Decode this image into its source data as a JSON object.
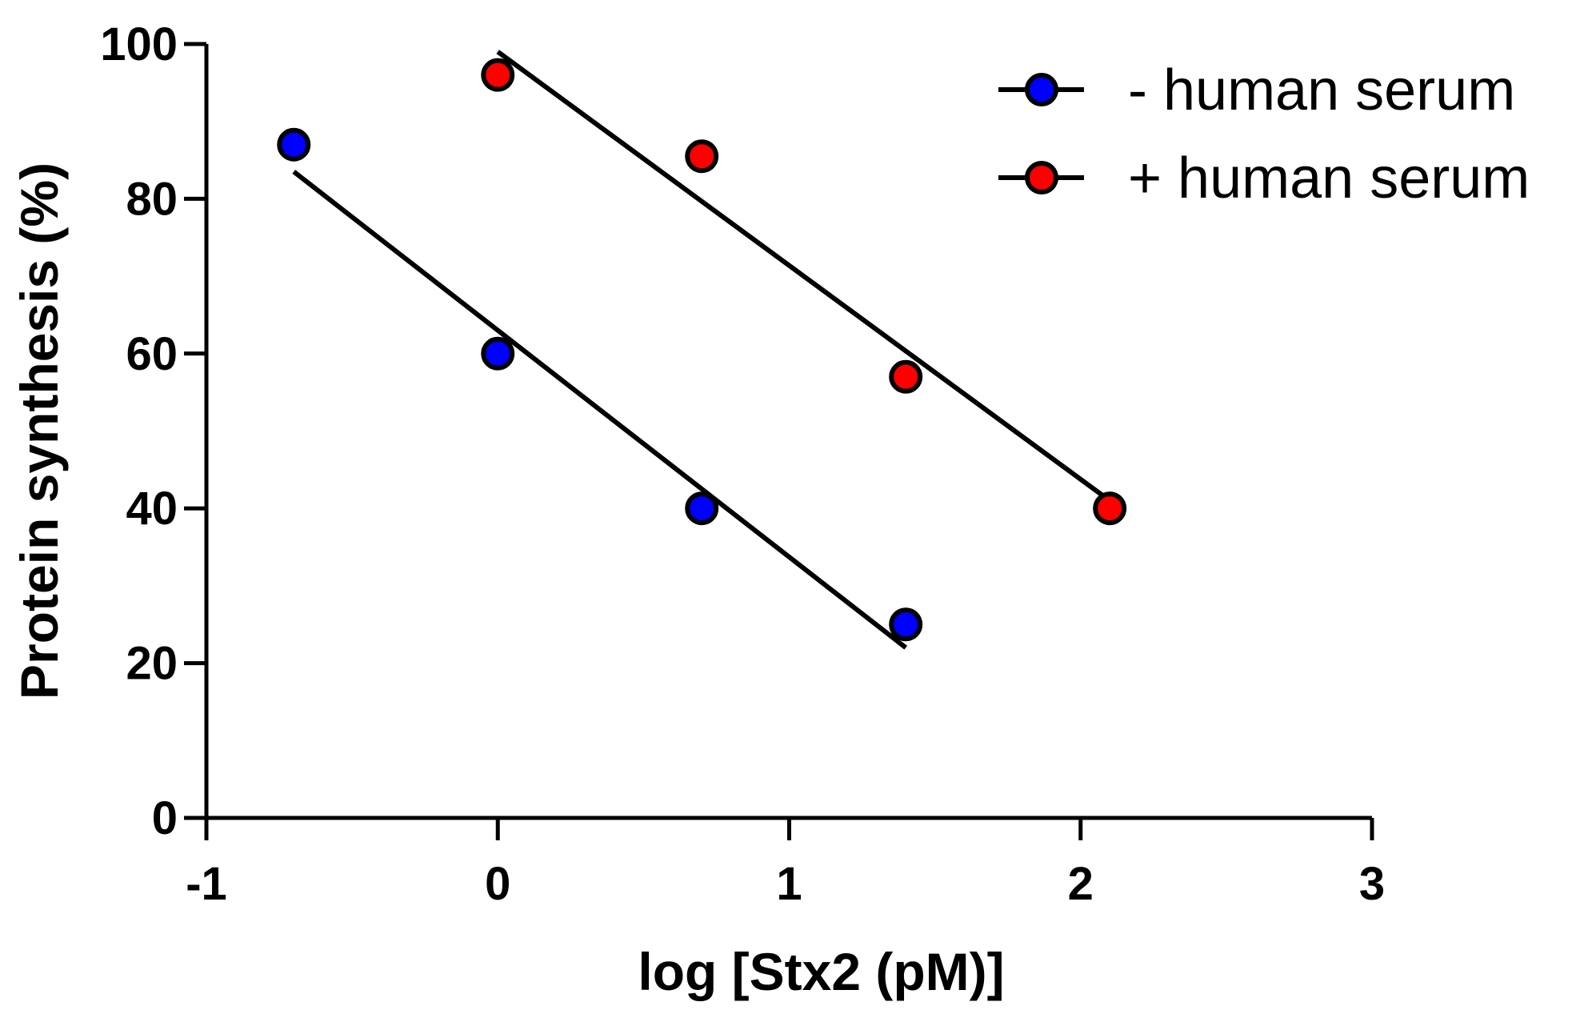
{
  "chart_data": {
    "type": "scatter",
    "xlabel": "log [Stx2 (pM)]",
    "ylabel": "Protein synthesis (%)",
    "xlim": [
      -1,
      3
    ],
    "ylim": [
      0,
      100
    ],
    "xticks": [
      "-1",
      "0",
      "1",
      "2",
      "3"
    ],
    "yticks": [
      "0",
      "20",
      "40",
      "60",
      "80",
      "100"
    ],
    "legend_position": "top-right",
    "grid": false,
    "series": [
      {
        "name": "- human serum",
        "color": "#0000ff",
        "points": [
          {
            "x": -0.7,
            "y": 87
          },
          {
            "x": 0,
            "y": 60
          },
          {
            "x": 0.7,
            "y": 40
          },
          {
            "x": 1.4,
            "y": 25
          }
        ],
        "fit": {
          "x1": -0.7,
          "y1": 83.5,
          "x2": 1.4,
          "y2": 22
        }
      },
      {
        "name": "+ human serum",
        "color": "#ff0000",
        "points": [
          {
            "x": 0,
            "y": 96
          },
          {
            "x": 0.7,
            "y": 85.5
          },
          {
            "x": 1.4,
            "y": 57
          },
          {
            "x": 2.1,
            "y": 40
          }
        ],
        "fit": {
          "x1": 0,
          "y1": 99,
          "x2": 2.1,
          "y2": 41
        }
      }
    ]
  }
}
